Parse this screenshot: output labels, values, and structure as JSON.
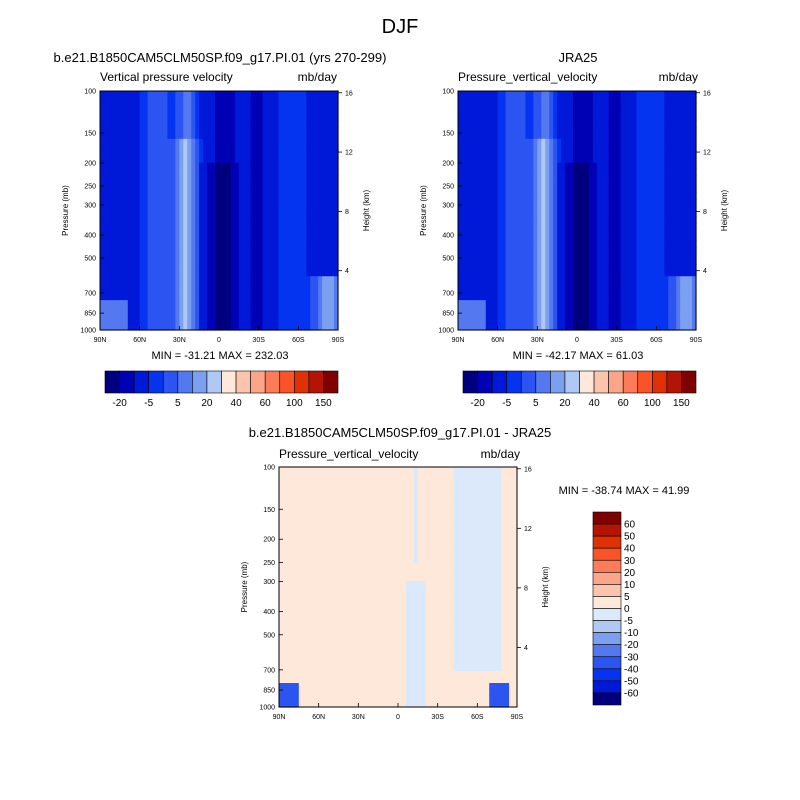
{
  "page_title": "DJF",
  "colors": {
    "seq_scale": [
      "#00007f",
      "#0000b4",
      "#0018d8",
      "#0434f0",
      "#2c54f0",
      "#5478f0",
      "#7ca0f0",
      "#b0c8f4",
      "#fde8da",
      "#fcc4ac",
      "#fca588",
      "#fc7c5a",
      "#f85428",
      "#e03006",
      "#b41404",
      "#7f0000"
    ],
    "div_scale": [
      "#00007f",
      "#0018d8",
      "#0434f0",
      "#2c54f0",
      "#5478f0",
      "#7ca0f0",
      "#b0c8f4",
      "#dce9fb",
      "#fde8da",
      "#fcc4ac",
      "#fca588",
      "#fc7c5a",
      "#f85428",
      "#e03006",
      "#b41404",
      "#7f0000"
    ]
  },
  "panels": [
    {
      "title": "b.e21.B1850CAM5CLM50SP.f09_g17.PI.01 (yrs 270-299)",
      "left_label": "Vertical pressure velocity",
      "right_label": "mb/day",
      "stats": "MIN = -31.21  MAX = 232.03"
    },
    {
      "title": "JRA25",
      "left_label": "Pressure_vertical_velocity",
      "right_label": "mb/day",
      "stats": "MIN = -42.17  MAX =  61.03"
    },
    {
      "title": "b.e21.B1850CAM5CLM50SP.f09_g17.PI.01 - JRA25",
      "left_label": "Pressure_vertical_velocity",
      "right_label": "mb/day",
      "stats": "MIN = -38.74  MAX =  41.99"
    }
  ],
  "chart_data": [
    {
      "type": "heatmap",
      "title": "b.e21.B1850CAM5CLM50SP.f09_g17.PI.01 (yrs 270-299)",
      "xlabel": "",
      "ylabel": "Pressure (mb)",
      "ylabel_right": "Height (km)",
      "x_ticks": [
        "90N",
        "60N",
        "30N",
        "0",
        "30S",
        "60S",
        "90S"
      ],
      "y_ticks": [
        "100",
        "150",
        "200",
        "250",
        "300",
        "400",
        "500",
        "700",
        "850",
        "1000"
      ],
      "y_ticks_right": [
        "16",
        "12",
        "8",
        "4"
      ],
      "xlim": [
        90,
        -90
      ],
      "ylim": [
        1000,
        100
      ],
      "y_scale": "log",
      "colorbar_labels": [
        "-20",
        "-5",
        "5",
        "20",
        "40",
        "60",
        "100",
        "150"
      ],
      "min": -31.21,
      "max": 232.03
    },
    {
      "type": "heatmap",
      "title": "JRA25",
      "xlabel": "",
      "ylabel": "Pressure (mb)",
      "ylabel_right": "Height (km)",
      "x_ticks": [
        "90N",
        "60N",
        "30N",
        "0",
        "30S",
        "60S",
        "90S"
      ],
      "y_ticks": [
        "100",
        "150",
        "200",
        "250",
        "300",
        "400",
        "500",
        "700",
        "850",
        "1000"
      ],
      "y_ticks_right": [
        "16",
        "12",
        "8",
        "4"
      ],
      "xlim": [
        90,
        -90
      ],
      "ylim": [
        1000,
        100
      ],
      "y_scale": "log",
      "colorbar_labels": [
        "-20",
        "-5",
        "5",
        "20",
        "40",
        "60",
        "100",
        "150"
      ],
      "min": -42.17,
      "max": 61.03
    },
    {
      "type": "heatmap",
      "title": "b.e21.B1850CAM5CLM50SP.f09_g17.PI.01 - JRA25",
      "xlabel": "",
      "ylabel": "Pressure (mb)",
      "ylabel_right": "Height (km)",
      "x_ticks": [
        "90N",
        "60N",
        "30N",
        "0",
        "30S",
        "60S",
        "90S"
      ],
      "y_ticks": [
        "100",
        "150",
        "200",
        "250",
        "300",
        "400",
        "500",
        "700",
        "850",
        "1000"
      ],
      "y_ticks_right": [
        "16",
        "12",
        "8",
        "4"
      ],
      "xlim": [
        90,
        -90
      ],
      "ylim": [
        1000,
        100
      ],
      "y_scale": "log",
      "colorbar_labels": [
        "60",
        "50",
        "40",
        "30",
        "20",
        "10",
        "5",
        "0",
        "-5",
        "-10",
        "-20",
        "-30",
        "-40",
        "-50",
        "-60"
      ],
      "min": -38.74,
      "max": 41.99
    }
  ]
}
